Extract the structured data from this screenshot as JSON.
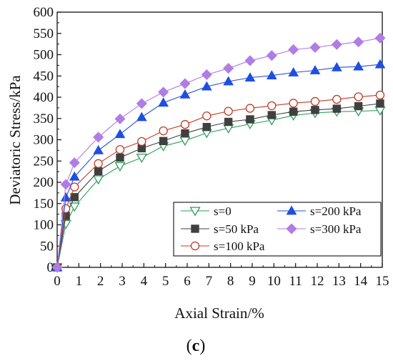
{
  "chart_data": {
    "type": "line",
    "xlabel": "Axial Strain/%",
    "ylabel": "Deviatoric Stress/kPa",
    "xlim": [
      0,
      15
    ],
    "ylim": [
      0,
      600
    ],
    "xticks": [
      0,
      1,
      2,
      3,
      4,
      5,
      6,
      7,
      8,
      9,
      10,
      11,
      12,
      13,
      14,
      15
    ],
    "yticks": [
      0,
      50,
      100,
      150,
      200,
      250,
      300,
      350,
      400,
      450,
      500,
      550,
      600
    ],
    "grid": false,
    "legend_placement": "bottom-right",
    "panel_label": {
      "open": "(",
      "letter": "c",
      "close": ")"
    },
    "series": [
      {
        "name": "s=0",
        "color": "#2e9e5b",
        "marker": "triangle-down-open",
        "x": [
          0,
          0.4,
          0.8,
          1.9,
          2.9,
          3.9,
          4.9,
          5.9,
          6.9,
          7.9,
          8.9,
          9.9,
          10.9,
          11.9,
          12.9,
          13.9,
          14.9
        ],
        "y": [
          0,
          102,
          143,
          207,
          238,
          258,
          285,
          298,
          316,
          327,
          337,
          346,
          357,
          363,
          366,
          367,
          369
        ]
      },
      {
        "name": "s=50 kPa",
        "color": "#404040",
        "marker": "square",
        "x": [
          0,
          0.4,
          0.8,
          1.9,
          2.9,
          3.9,
          4.9,
          5.9,
          6.9,
          7.9,
          8.9,
          9.9,
          10.9,
          11.9,
          12.9,
          13.9,
          14.9
        ],
        "y": [
          0,
          121,
          165,
          226,
          258,
          280,
          297,
          315,
          330,
          342,
          348,
          358,
          366,
          370,
          373,
          379,
          385
        ]
      },
      {
        "name": "s=100 kPa",
        "color": "#c23b22",
        "marker": "circle-open",
        "x": [
          0,
          0.4,
          0.8,
          1.9,
          2.9,
          3.9,
          4.9,
          5.9,
          6.9,
          7.9,
          8.9,
          9.9,
          10.9,
          11.9,
          12.9,
          13.9,
          14.9
        ],
        "y": [
          0,
          138,
          189,
          244,
          277,
          296,
          321,
          336,
          356,
          367,
          374,
          380,
          386,
          390,
          395,
          401,
          405
        ]
      },
      {
        "name": "s=200 kPa",
        "color": "#1f4fe0",
        "marker": "triangle-up",
        "x": [
          0,
          0.4,
          0.8,
          1.9,
          2.9,
          3.9,
          4.9,
          5.9,
          6.9,
          7.9,
          8.9,
          9.9,
          10.9,
          11.9,
          12.9,
          13.9,
          14.9
        ],
        "y": [
          0,
          164,
          213,
          275,
          313,
          353,
          387,
          406,
          425,
          437,
          446,
          451,
          458,
          463,
          470,
          472,
          477
        ]
      },
      {
        "name": "s=300 kPa",
        "color": "#b07ce6",
        "marker": "diamond",
        "x": [
          0,
          0.4,
          0.8,
          1.9,
          2.9,
          3.9,
          4.9,
          5.9,
          6.9,
          7.9,
          8.9,
          9.9,
          10.9,
          11.9,
          12.9,
          13.9,
          14.9
        ],
        "y": [
          0,
          195,
          246,
          306,
          349,
          385,
          412,
          432,
          453,
          468,
          486,
          498,
          512,
          517,
          524,
          530,
          539
        ]
      }
    ],
    "legend_order": [
      0,
      3,
      1,
      4,
      2
    ]
  }
}
